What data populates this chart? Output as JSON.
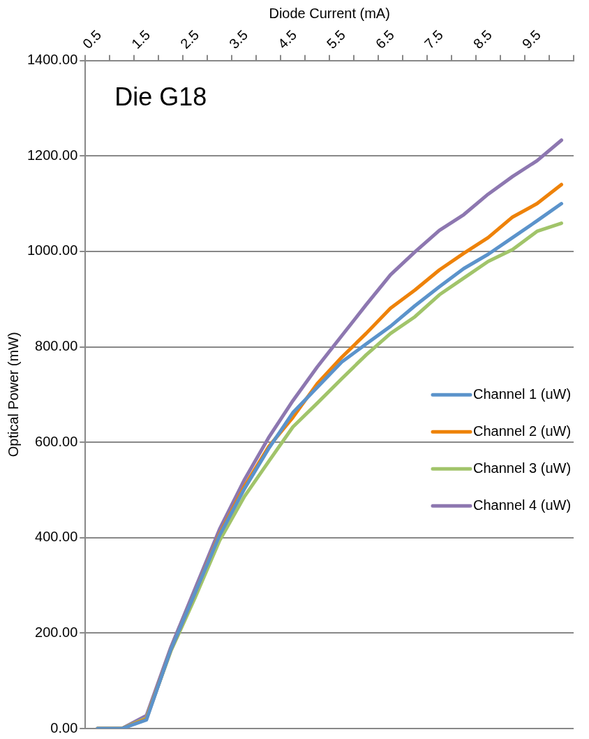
{
  "chart_data": {
    "type": "line",
    "title": "Die G18",
    "xlabel": "Diode Current (mA)",
    "ylabel": "Optical Power (mW)",
    "categories": [
      "0.5",
      null,
      "1.5",
      null,
      "2.5",
      null,
      "3.5",
      null,
      "4.5",
      null,
      "5.5",
      null,
      "6.5",
      null,
      "7.5",
      null,
      "8.5",
      null,
      "9.5",
      null
    ],
    "series": [
      {
        "name": "Channel 1 (uW)",
        "color": "#5b93cb",
        "values": [
          0,
          0,
          18,
          165,
          285,
          405,
          501,
          586,
          662,
          715,
          768,
          806,
          843,
          886,
          926,
          964,
          994,
          1029,
          1064,
          1100
        ]
      },
      {
        "name": "Channel 2 (uW)",
        "color": "#ee8208",
        "values": [
          0,
          0,
          20,
          165,
          285,
          408,
          506,
          590,
          652,
          723,
          778,
          828,
          881,
          919,
          961,
          996,
          1029,
          1072,
          1100,
          1140
        ]
      },
      {
        "name": "Channel 3 (uW)",
        "color": "#a1c46a",
        "values": [
          0,
          0,
          22,
          162,
          275,
          394,
          485,
          559,
          632,
          682,
          733,
          783,
          828,
          863,
          909,
          944,
          979,
          1004,
          1042,
          1059
        ]
      },
      {
        "name": "Channel 4 (uW)",
        "color": "#8d77b0",
        "values": [
          0,
          0,
          27,
          170,
          294,
          418,
          520,
          609,
          687,
          758,
          823,
          888,
          951,
          999,
          1044,
          1077,
          1120,
          1157,
          1190,
          1233
        ]
      }
    ],
    "ylim": [
      0,
      1400
    ],
    "yticks": [
      {
        "value": 0,
        "label": "0.00"
      },
      {
        "value": 200,
        "label": "200.00"
      },
      {
        "value": 400,
        "label": "400.00"
      },
      {
        "value": 600,
        "label": "600.00"
      },
      {
        "value": 800,
        "label": "800.00"
      },
      {
        "value": 1000,
        "label": "1000.00"
      },
      {
        "value": 1200,
        "label": "1200.00"
      },
      {
        "value": 1400,
        "label": "1400.00"
      }
    ],
    "grid": "y",
    "legend": "right",
    "marker": "none",
    "line_style": "solid"
  }
}
